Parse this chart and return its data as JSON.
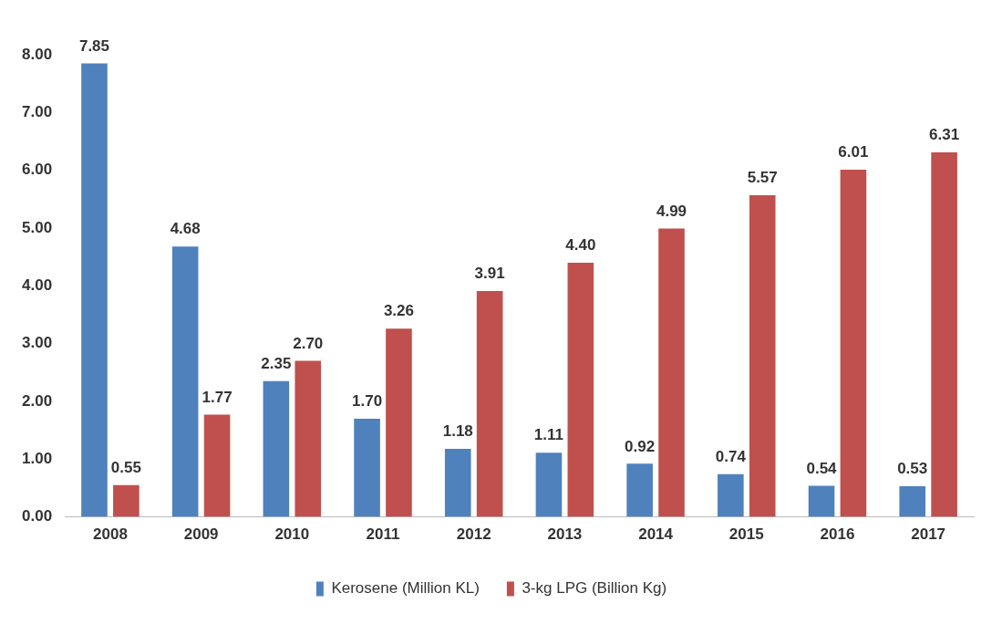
{
  "chart_data": {
    "type": "bar",
    "categories": [
      "2008",
      "2009",
      "2010",
      "2011",
      "2012",
      "2013",
      "2014",
      "2015",
      "2016",
      "2017"
    ],
    "series": [
      {
        "name": "Kerosene (Million KL)",
        "color": "#4f81bd",
        "values": [
          7.85,
          4.68,
          2.35,
          1.7,
          1.18,
          1.11,
          0.92,
          0.74,
          0.54,
          0.53
        ],
        "value_labels": [
          "7.85",
          "4.68",
          "2.35",
          "1.70",
          "1.18",
          "1.11",
          "0.92",
          "0.74",
          "0.54",
          "0.53"
        ]
      },
      {
        "name": "3-kg LPG (Billion Kg)",
        "color": "#c0504d",
        "values": [
          0.55,
          1.77,
          2.7,
          3.26,
          3.91,
          4.4,
          4.99,
          5.57,
          6.01,
          6.31
        ],
        "value_labels": [
          "0.55",
          "1.77",
          "2.70",
          "3.26",
          "3.91",
          "4.40",
          "4.99",
          "5.57",
          "6.01",
          "6.31"
        ]
      }
    ],
    "ylim": [
      0,
      8
    ],
    "yticks": [
      {
        "value": 0,
        "label": "0.00"
      },
      {
        "value": 1,
        "label": "1.00"
      },
      {
        "value": 2,
        "label": "2.00"
      },
      {
        "value": 3,
        "label": "3.00"
      },
      {
        "value": 4,
        "label": "4.00"
      },
      {
        "value": 5,
        "label": "5.00"
      },
      {
        "value": 6,
        "label": "6.00"
      },
      {
        "value": 7,
        "label": "7.00"
      },
      {
        "value": 8,
        "label": "8.00"
      }
    ],
    "grid": false,
    "legend": "bottom"
  }
}
